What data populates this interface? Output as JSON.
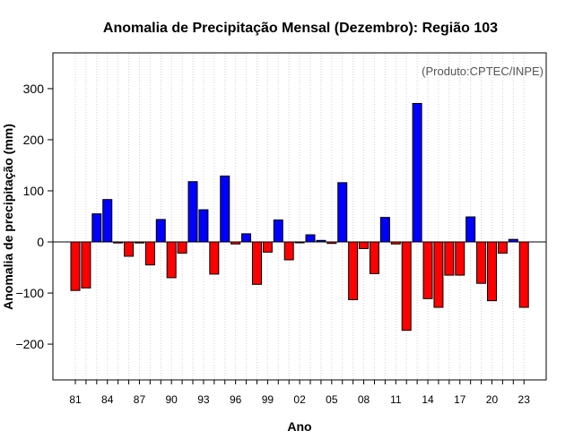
{
  "chart_data": {
    "type": "bar",
    "title": "Anomalia de Precipitação Mensal (Dezembro): Região 103",
    "xlabel": "Ano",
    "ylabel": "Anomalia de precipitação (mm)",
    "annotation": "(Produto:CPTEC/INPE)",
    "ylim": [
      -270,
      370
    ],
    "yticks": [
      -200,
      -100,
      0,
      100,
      200,
      300
    ],
    "xtick_labels": [
      "81",
      "84",
      "87",
      "90",
      "93",
      "96",
      "99",
      "02",
      "05",
      "08",
      "11",
      "14",
      "17",
      "20",
      "23"
    ],
    "grid": true,
    "colors": {
      "positive": "#0000ff",
      "negative": "#ff0000"
    },
    "categories": [
      "1981",
      "1982",
      "1983",
      "1984",
      "1985",
      "1986",
      "1987",
      "1988",
      "1989",
      "1990",
      "1991",
      "1992",
      "1993",
      "1994",
      "1995",
      "1996",
      "1997",
      "1998",
      "1999",
      "2000",
      "2001",
      "2002",
      "2003",
      "2004",
      "2005",
      "2006",
      "2007",
      "2008",
      "2009",
      "2010",
      "2011",
      "2012",
      "2013",
      "2014",
      "2015",
      "2016",
      "2017",
      "2018",
      "2019",
      "2020",
      "2021",
      "2022",
      "2023"
    ],
    "values": [
      -95,
      -90,
      55,
      83,
      -2,
      -28,
      -2,
      -45,
      44,
      -70,
      -22,
      118,
      63,
      -63,
      129,
      -4,
      16,
      -83,
      -20,
      43,
      -35,
      0,
      14,
      3,
      -3,
      116,
      -113,
      -13,
      -62,
      48,
      -4,
      -173,
      271,
      -111,
      -128,
      -65,
      -65,
      49,
      -81,
      -115,
      -22,
      5,
      -128
    ]
  }
}
